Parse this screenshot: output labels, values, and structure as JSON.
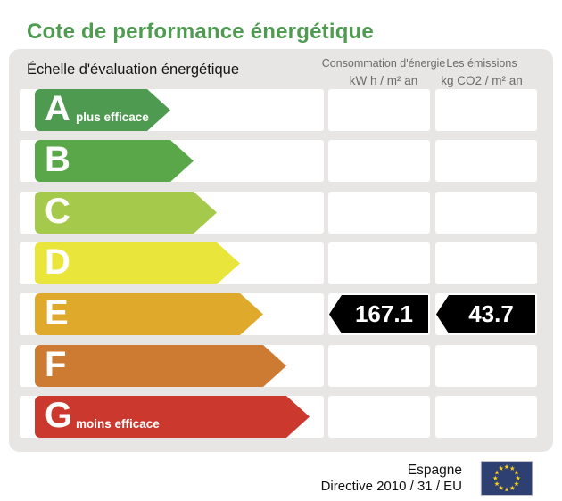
{
  "title": "Cote de performance énergétique",
  "colors": {
    "title_green": "#4e9b51",
    "panel_bg": "#e7e6e4",
    "header_text": "#6b6b69",
    "tag_bg": "#000000",
    "tag_text": "#ffffff",
    "flag_blue": "#2e3f72",
    "flag_star": "#f7d117"
  },
  "table": {
    "scale_header": "Échelle d'évaluation énergétique",
    "columns": [
      {
        "title": "Consommation d'énergie",
        "unit": "kW h / m² an"
      },
      {
        "title": "Les émissions",
        "unit": "kg CO2 / m² an"
      }
    ],
    "rows": [
      {
        "letter": "A",
        "qualifier": "plus efficace",
        "color": "#4f9a51",
        "arrow_width": 152,
        "consumption": "",
        "emissions": ""
      },
      {
        "letter": "B",
        "qualifier": "",
        "color": "#5aa749",
        "arrow_width": 178,
        "consumption": "",
        "emissions": ""
      },
      {
        "letter": "C",
        "qualifier": "",
        "color": "#a5c94a",
        "arrow_width": 204,
        "consumption": "",
        "emissions": ""
      },
      {
        "letter": "D",
        "qualifier": "",
        "color": "#e9e53a",
        "arrow_width": 230,
        "consumption": "",
        "emissions": ""
      },
      {
        "letter": "E",
        "qualifier": "",
        "color": "#dfaa2c",
        "arrow_width": 256,
        "consumption": "167.1",
        "emissions": "43.7"
      },
      {
        "letter": "F",
        "qualifier": "",
        "color": "#cd7a33",
        "arrow_width": 282,
        "consumption": "",
        "emissions": ""
      },
      {
        "letter": "G",
        "qualifier": "moins efficace",
        "color": "#cb392e",
        "arrow_width": 308,
        "consumption": "",
        "emissions": ""
      }
    ]
  },
  "footer": {
    "country": "Espagne",
    "directive": "Directive 2010 / 31 / EU"
  },
  "chart_data": {
    "type": "table",
    "title": "Cote de performance énergétique",
    "categories": [
      "A",
      "B",
      "C",
      "D",
      "E",
      "F",
      "G"
    ],
    "category_notes": {
      "A": "plus efficace",
      "G": "moins efficace"
    },
    "columns": [
      "Consommation d'énergie (kW h / m² an)",
      "Les émissions (kg CO2 / m² an)"
    ],
    "rating": "E",
    "values": {
      "consommation_kwh_m2_an": 167.1,
      "emissions_kgco2_m2_an": 43.7
    },
    "legend_position": "none",
    "grid": false
  }
}
